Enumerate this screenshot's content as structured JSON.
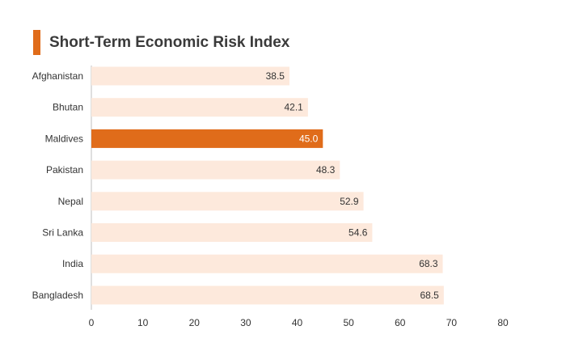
{
  "title": "Short-Term Economic Risk Index",
  "colors": {
    "accent": "#e06c1a",
    "bar": "#fde9dc",
    "highlight": "#e06c1a",
    "label_text": "#333333",
    "highlight_text": "#ffffff",
    "axis": "#bfbfbf"
  },
  "chart_data": {
    "type": "bar",
    "orientation": "horizontal",
    "title": "Short-Term Economic Risk Index",
    "categories": [
      "Afghanistan",
      "Bhutan",
      "Maldives",
      "Pakistan",
      "Nepal",
      "Sri Lanka",
      "India",
      "Bangladesh"
    ],
    "values": [
      38.5,
      42.1,
      45.0,
      48.3,
      52.9,
      54.6,
      68.3,
      68.5
    ],
    "value_labels": [
      "38.5",
      "42.1",
      "45.0",
      "48.3",
      "52.9",
      "54.6",
      "68.3",
      "68.5"
    ],
    "highlighted_category": "Maldives",
    "xlim": [
      0,
      80
    ],
    "xticks": [
      0,
      10,
      20,
      30,
      40,
      50,
      60,
      70,
      80
    ],
    "xtick_labels": [
      "0",
      "10",
      "20",
      "30",
      "40",
      "50",
      "60",
      "70",
      "80"
    ],
    "xlabel": "",
    "ylabel": "",
    "grid": false,
    "legend": "none"
  }
}
